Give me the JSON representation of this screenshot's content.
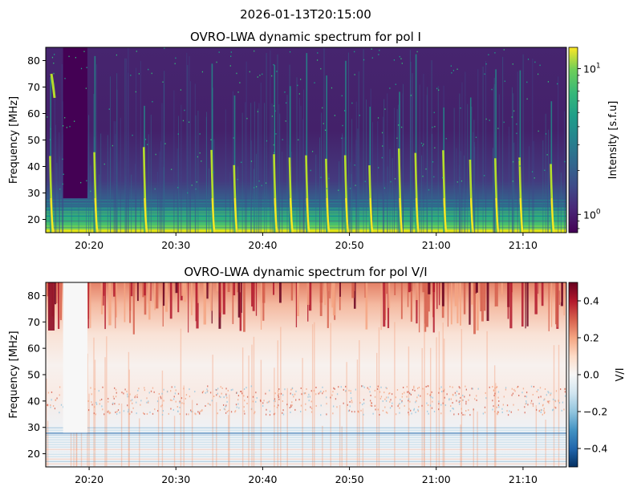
{
  "figure": {
    "suptitle": "2026-01-13T20:15:00"
  },
  "chart_data": [
    {
      "type": "heatmap",
      "title": "OVRO-LWA dynamic spectrum for pol I",
      "xlabel": "",
      "ylabel": "Frequency [MHz]",
      "x_ticks": [
        "20:20",
        "20:30",
        "20:40",
        "20:50",
        "21:00",
        "21:10"
      ],
      "x_tick_minutes": [
        20,
        30,
        40,
        50,
        60,
        70
      ],
      "xlim_minutes_after_20_00": [
        15,
        75
      ],
      "y_ticks": [
        20,
        30,
        40,
        50,
        60,
        70,
        80
      ],
      "ylim": [
        15,
        85
      ],
      "colormap": "viridis",
      "colorbar": {
        "label": "Intensity [s.f.u]",
        "scale": "log",
        "range": [
          0.75,
          14
        ],
        "ticks": [
          {
            "value": 10,
            "base": "10",
            "exp": "1"
          },
          {
            "value": 1,
            "base": "10",
            "exp": "0"
          }
        ]
      },
      "features": {
        "data_gap_minutes": [
          17.0,
          19.8
        ],
        "bright_bursts_minutes": [
          15.5,
          20.6,
          26.3,
          34.1,
          36.7,
          41.3,
          43.1,
          45.0,
          47.3,
          49.5,
          52.3,
          55.7,
          57.6,
          60.8,
          63.9,
          66.8,
          69.6,
          73.2
        ],
        "strong_band_mhz": [
          15,
          28
        ]
      }
    },
    {
      "type": "heatmap",
      "title": "OVRO-LWA dynamic spectrum for pol V/I",
      "xlabel": "",
      "ylabel": "Frequency [MHz]",
      "x_ticks": [
        "20:20",
        "20:30",
        "20:40",
        "20:50",
        "21:00",
        "21:10"
      ],
      "x_tick_minutes": [
        20,
        30,
        40,
        50,
        60,
        70
      ],
      "xlim_minutes_after_20_00": [
        15,
        75
      ],
      "y_ticks": [
        20,
        30,
        40,
        50,
        60,
        70,
        80
      ],
      "ylim": [
        15,
        85
      ],
      "colormap": "RdBu_r",
      "colorbar": {
        "label": "V/I",
        "scale": "linear",
        "range": [
          -0.5,
          0.5
        ],
        "ticks": [
          0.4,
          0.2,
          0.0,
          -0.2,
          -0.4
        ],
        "tick_labels": [
          "0.4",
          "0.2",
          "0.0",
          "−0.2",
          "−0.4"
        ]
      },
      "features": {
        "data_gap_minutes": [
          17.0,
          19.8
        ],
        "strong_positive_band_mhz": [
          65,
          85
        ],
        "speckle_band_mhz": [
          35,
          46
        ],
        "negative_streak_band_mhz": [
          15,
          30
        ]
      }
    }
  ]
}
